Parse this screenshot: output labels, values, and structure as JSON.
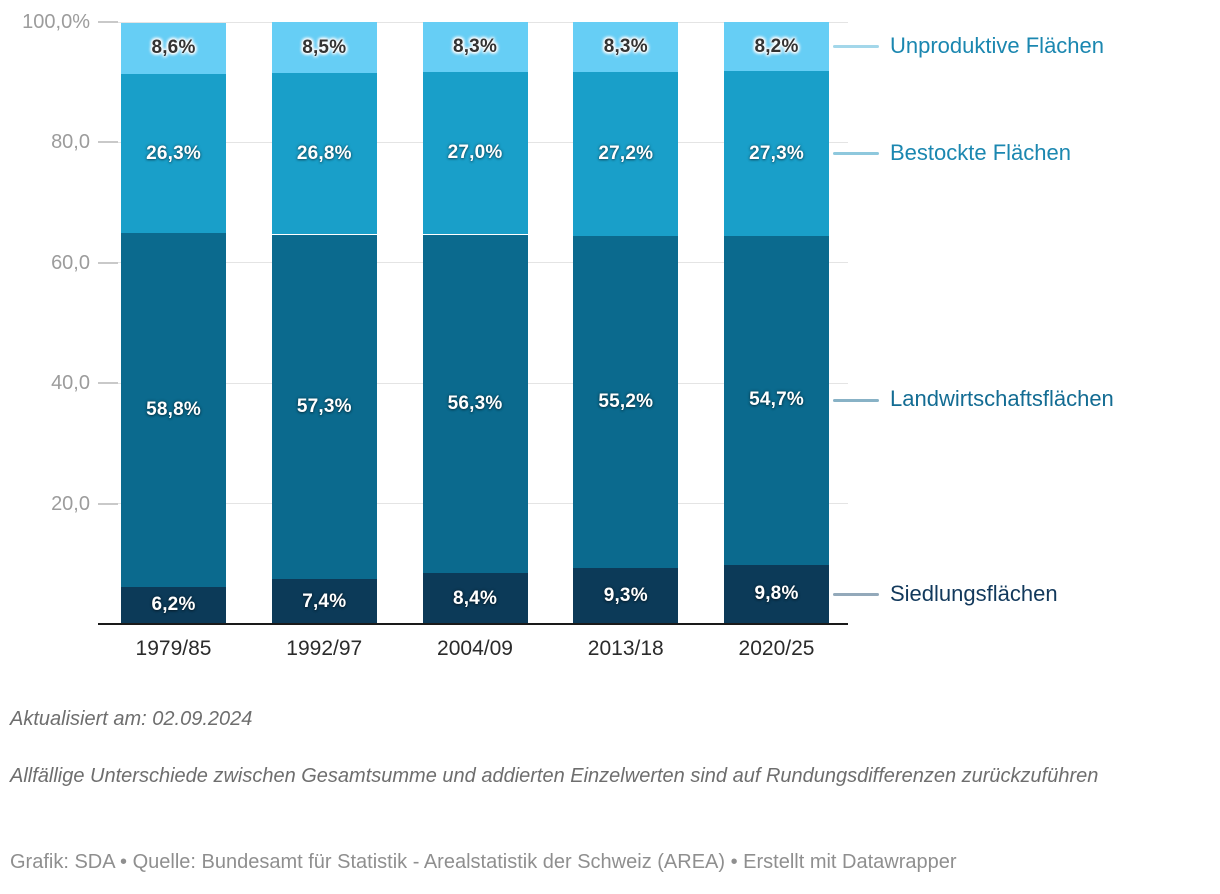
{
  "chart_data": {
    "type": "bar",
    "variant": "stacked-column-100",
    "unit": "%",
    "title": "",
    "xlabel": "",
    "ylabel": "",
    "grid": true,
    "legend_position": "right-annotations",
    "categories": [
      "1979/85",
      "1992/97",
      "2004/09",
      "2013/18",
      "2020/25"
    ],
    "series": [
      {
        "name": "Unproduktive Flächen",
        "values": [
          8.6,
          8.5,
          8.3,
          8.3,
          8.2
        ],
        "value_labels": [
          "8,6%",
          "8,5%",
          "8,3%",
          "8,3%",
          "8,2%"
        ],
        "color": "#66cef5",
        "label_style": "dark",
        "legend_text_color": "#1b87b0",
        "legend_line_color": "#a3d7ea"
      },
      {
        "name": "Bestockte Flächen",
        "values": [
          26.3,
          26.8,
          27.0,
          27.2,
          27.3
        ],
        "value_labels": [
          "26,3%",
          "26,8%",
          "27,0%",
          "27,2%",
          "27,3%"
        ],
        "color": "#199fc9",
        "label_style": "light",
        "legend_text_color": "#1b87b0",
        "legend_line_color": "#8ec8dd"
      },
      {
        "name": "Landwirtschaftsflächen",
        "values": [
          58.8,
          57.3,
          56.3,
          55.2,
          54.7
        ],
        "value_labels": [
          "58,8%",
          "57,3%",
          "56,3%",
          "55,2%",
          "54,7%"
        ],
        "color": "#0b6a8e",
        "label_style": "light",
        "legend_text_color": "#136c93",
        "legend_line_color": "#88b2c6"
      },
      {
        "name": "Siedlungsflächen",
        "values": [
          6.2,
          7.4,
          8.4,
          9.3,
          9.8
        ],
        "value_labels": [
          "6,2%",
          "7,4%",
          "8,4%",
          "9,3%",
          "9,8%"
        ],
        "color": "#0c3a58",
        "label_style": "light",
        "legend_text_color": "#12395c",
        "legend_line_color": "#93a9ba"
      }
    ],
    "y_axis": {
      "range": [
        0,
        100
      ],
      "ticks": [
        20,
        40,
        60,
        80,
        100
      ],
      "tick_labels": [
        "20,0",
        "40,0",
        "60,0",
        "80,0",
        "100,0%"
      ]
    }
  },
  "notes": {
    "updated": "Aktualisiert am: 02.09.2024",
    "rounding": "Allfällige Unterschiede zwischen Gesamtsumme und addierten Einzelwerten sind auf Rundungsdifferenzen zurückzuführen"
  },
  "footer": {
    "credit": "Grafik: SDA • Quelle: Bundesamt für Statistik - Arealstatistik der Schweiz (AREA) • Erstellt mit Datawrapper"
  },
  "colors": {
    "background": "#ffffff",
    "gridline": "#e4e4e4",
    "tick": "#c9c9c9",
    "axis_line": "#1a1a1a",
    "y_label": "#9c9c9c",
    "x_label": "#2b2b2b",
    "note_text": "#6e6e6e",
    "credit_text": "#8f8f8f"
  }
}
